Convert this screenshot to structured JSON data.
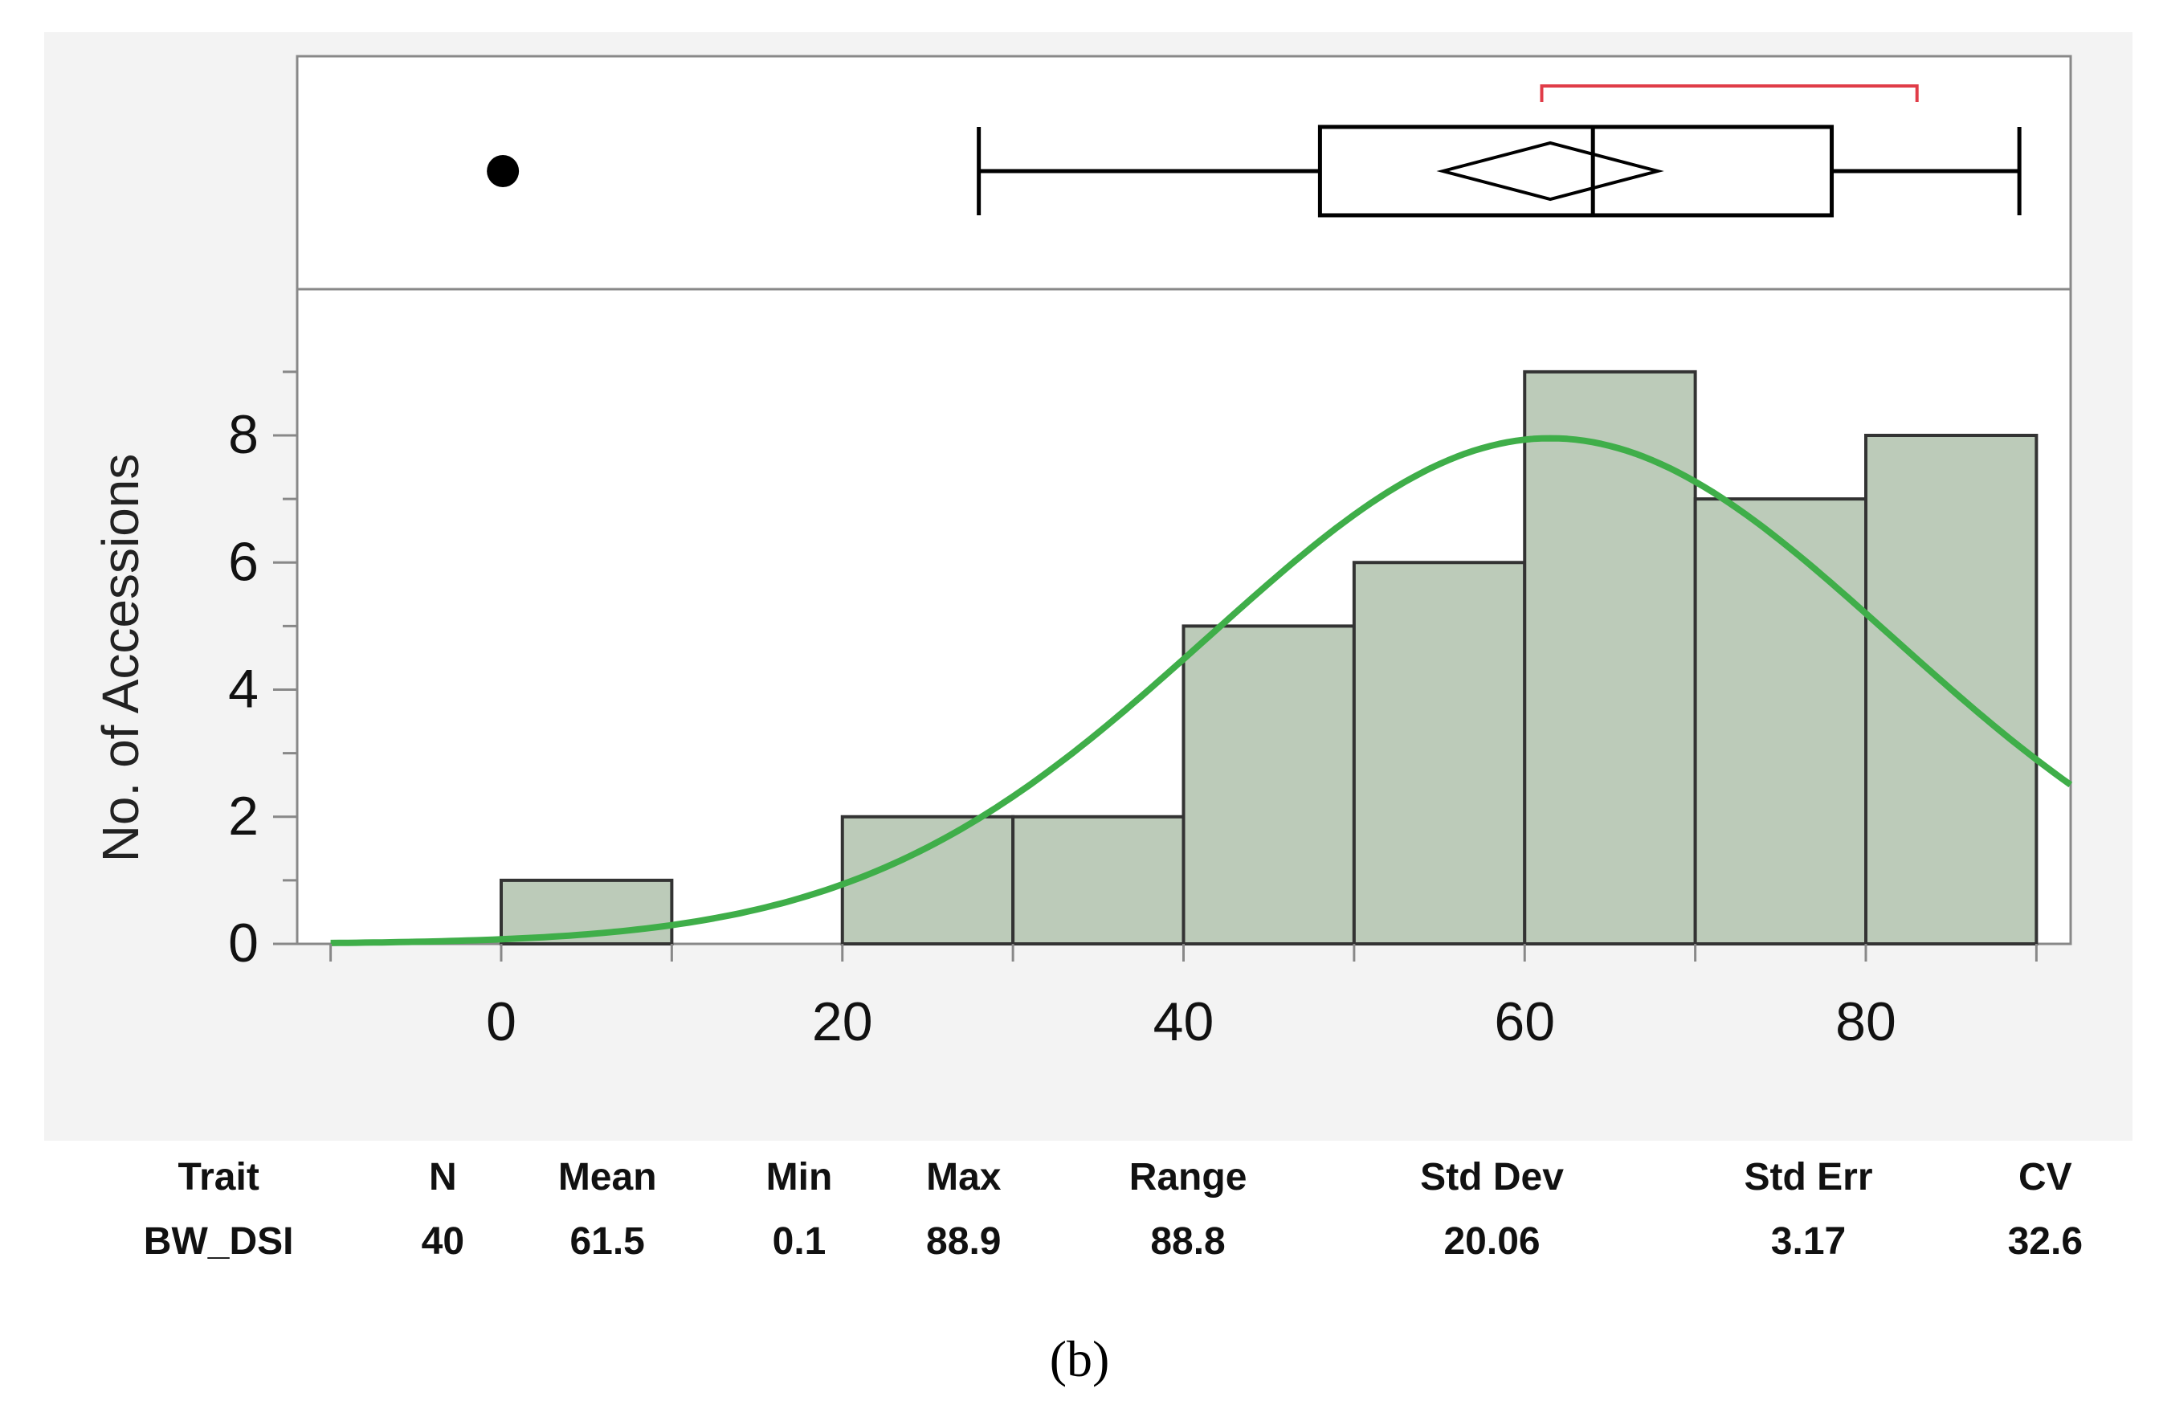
{
  "chart_data": {
    "type": "bar",
    "subtype": "histogram",
    "ylabel": "No. of Accessions",
    "xlabel": "",
    "xlim": [
      -10,
      92
    ],
    "ylim": [
      0,
      10
    ],
    "x_ticks": [
      0,
      20,
      40,
      60,
      80
    ],
    "y_ticks": [
      0,
      2,
      4,
      6,
      8
    ],
    "bins": [
      {
        "from": 0,
        "to": 10,
        "count": 1
      },
      {
        "from": 10,
        "to": 20,
        "count": 0
      },
      {
        "from": 20,
        "to": 30,
        "count": 2
      },
      {
        "from": 30,
        "to": 40,
        "count": 2
      },
      {
        "from": 40,
        "to": 50,
        "count": 5
      },
      {
        "from": 50,
        "to": 60,
        "count": 6
      },
      {
        "from": 60,
        "to": 70,
        "count": 9
      },
      {
        "from": 70,
        "to": 80,
        "count": 7
      },
      {
        "from": 80,
        "to": 90,
        "count": 8
      }
    ],
    "normal_fit": {
      "mean": 61.5,
      "sd": 20.06,
      "n": 40,
      "bin_width": 10
    },
    "boxplot": {
      "outliers": [
        0.1
      ],
      "whisker_low": 28,
      "q1": 48,
      "median": 64,
      "q3": 78,
      "whisker_high": 89,
      "mean_diamond": {
        "center": 61.5,
        "half_width": 6.3
      },
      "shortest_half": [
        61,
        83
      ]
    },
    "colors": {
      "bar_fill": "#bccbb9",
      "bar_stroke": "#333333",
      "curve": "#3fae49",
      "shortest_half": "#e03c48",
      "panel_bg": "#f3f3f3",
      "plot_bg": "#ffffff",
      "axis": "#888888"
    }
  },
  "stats_table": {
    "headers": [
      "Trait",
      "N",
      "Mean",
      "Min",
      "Max",
      "Range",
      "Std Dev",
      "Std Err",
      "CV"
    ],
    "row": [
      "BW_DSI",
      "40",
      "61.5",
      "0.1",
      "88.9",
      "88.8",
      "20.06",
      "3.17",
      "32.6"
    ]
  },
  "caption": "(b)"
}
